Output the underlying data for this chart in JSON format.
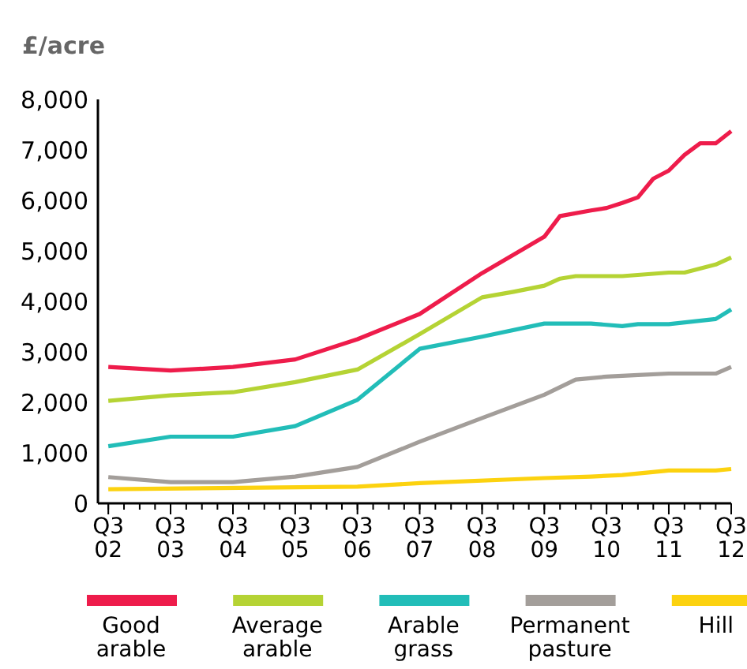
{
  "chart_data": {
    "type": "line",
    "ylabel": "£/acre",
    "xlim": [
      "2002-05",
      "2012-07"
    ],
    "ylim": [
      0,
      8000
    ],
    "yticks": [
      {
        "value": 0,
        "label": "0"
      },
      {
        "value": 1000,
        "label": "1,000"
      },
      {
        "value": 2000,
        "label": "2,000"
      },
      {
        "value": 3000,
        "label": "3,000"
      },
      {
        "value": 4000,
        "label": "4,000"
      },
      {
        "value": 5000,
        "label": "5,000"
      },
      {
        "value": 6000,
        "label": "6,000"
      },
      {
        "value": 7000,
        "label": "7,000"
      },
      {
        "value": 8000,
        "label": "8,000"
      }
    ],
    "xticks": [
      {
        "value": "2002-07",
        "label": "Q3\n02"
      },
      {
        "value": "2003-07",
        "label": "Q3\n03"
      },
      {
        "value": "2004-07",
        "label": "Q3\n04"
      },
      {
        "value": "2005-07",
        "label": "Q3\n05"
      },
      {
        "value": "2006-07",
        "label": "Q3\n06"
      },
      {
        "value": "2007-07",
        "label": "Q3\n07"
      },
      {
        "value": "2008-07",
        "label": "Q3\n08"
      },
      {
        "value": "2009-07",
        "label": "Q3\n09"
      },
      {
        "value": "2010-07",
        "label": "Q3\n10"
      },
      {
        "value": "2011-07",
        "label": "Q3\n11"
      },
      {
        "value": "2012-07",
        "label": "Q3\n12"
      }
    ],
    "legend": "bottom",
    "marker": "none",
    "line_style": "solid",
    "series": [
      {
        "name": "Good arable",
        "color": "#ee1c4b",
        "x": [
          "2002-07",
          "2003-07",
          "2004-07",
          "2005-07",
          "2006-07",
          "2007-07",
          "2008-07",
          "2009-07",
          "2009-10",
          "2010-04",
          "2010-07",
          "2010-10",
          "2011-01",
          "2011-04",
          "2011-07",
          "2011-10",
          "2012-01",
          "2012-04",
          "2012-07"
        ],
        "values": [
          2700,
          2630,
          2700,
          2850,
          3250,
          3750,
          4560,
          5280,
          5690,
          5800,
          5850,
          5950,
          6060,
          6430,
          6590,
          6900,
          7130,
          7130,
          7370
        ]
      },
      {
        "name": "Average arable",
        "color": "#b5d334",
        "x": [
          "2002-07",
          "2003-07",
          "2004-07",
          "2005-07",
          "2006-07",
          "2007-07",
          "2008-07",
          "2009-01",
          "2009-07",
          "2009-10",
          "2010-01",
          "2010-10",
          "2011-07",
          "2011-10",
          "2012-04",
          "2012-07"
        ],
        "values": [
          2030,
          2140,
          2200,
          2400,
          2650,
          3350,
          4080,
          4190,
          4310,
          4450,
          4500,
          4500,
          4570,
          4570,
          4730,
          4870
        ]
      },
      {
        "name": "Arable grass",
        "color": "#22bdb8",
        "x": [
          "2002-07",
          "2003-07",
          "2004-07",
          "2005-07",
          "2006-07",
          "2007-07",
          "2008-07",
          "2009-07",
          "2010-04",
          "2010-10",
          "2011-01",
          "2011-07",
          "2012-04",
          "2012-07"
        ],
        "values": [
          1130,
          1320,
          1320,
          1530,
          2050,
          3060,
          3300,
          3560,
          3560,
          3510,
          3550,
          3550,
          3650,
          3840
        ]
      },
      {
        "name": "Permanent pasture",
        "color": "#a39e9a",
        "x": [
          "2002-07",
          "2003-07",
          "2004-07",
          "2005-07",
          "2006-07",
          "2007-07",
          "2008-07",
          "2009-07",
          "2010-01",
          "2010-07",
          "2011-01",
          "2011-07",
          "2012-04",
          "2012-07"
        ],
        "values": [
          520,
          420,
          420,
          530,
          720,
          1220,
          1690,
          2150,
          2450,
          2510,
          2540,
          2570,
          2570,
          2700
        ]
      },
      {
        "name": "Hill",
        "color": "#fcd20f",
        "x": [
          "2002-07",
          "2006-07",
          "2007-07",
          "2009-07",
          "2010-04",
          "2010-10",
          "2011-07",
          "2012-04",
          "2012-07"
        ],
        "values": [
          280,
          330,
          400,
          500,
          530,
          560,
          650,
          650,
          680
        ]
      }
    ]
  }
}
